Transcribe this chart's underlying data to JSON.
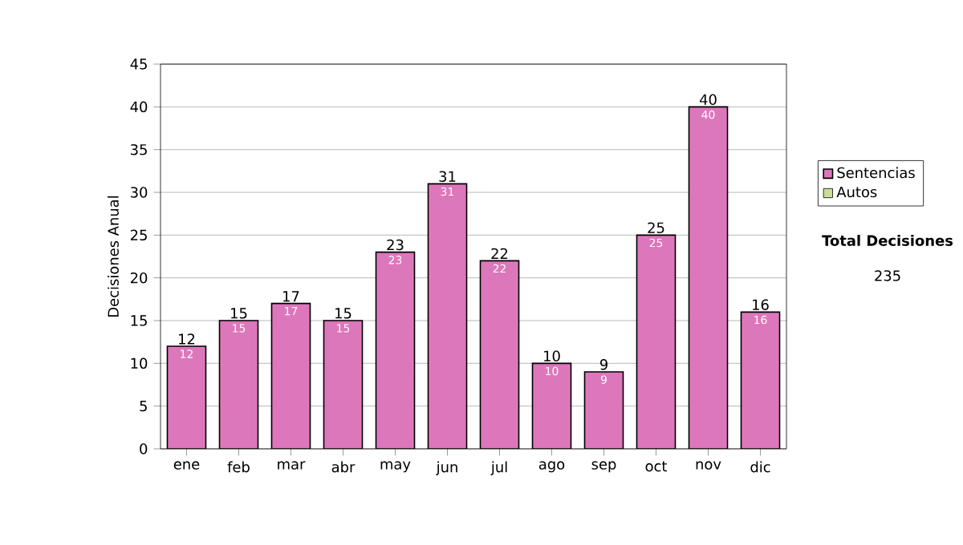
{
  "chart_data": {
    "type": "bar",
    "ylabel": "Decisiones Anual",
    "categories": [
      "ene",
      "feb",
      "mar",
      "abr",
      "may",
      "jun",
      "jul",
      "ago",
      "sep",
      "oct",
      "nov",
      "dic"
    ],
    "series": [
      {
        "name": "Sentencias",
        "color": "#dd77bb",
        "values": [
          12,
          15,
          17,
          15,
          23,
          31,
          22,
          10,
          9,
          25,
          40,
          16
        ],
        "value_labels": [
          "12",
          "15",
          "17",
          "15",
          "23",
          "31",
          "22",
          "10",
          "9",
          "25",
          "40",
          "16"
        ]
      },
      {
        "name": "Autos",
        "color": "#ccdd99",
        "values": [
          null,
          null,
          null,
          null,
          null,
          null,
          null,
          null,
          null,
          null,
          null,
          null
        ]
      }
    ],
    "totals": [
      "12",
      "15",
      "17",
      "15",
      "23",
      "31",
      "22",
      "10",
      "9",
      "25",
      "40",
      "16"
    ],
    "ylim": [
      0,
      45
    ],
    "yticks": [
      0,
      5,
      10,
      15,
      20,
      25,
      30,
      35,
      40,
      45
    ],
    "grid": "y",
    "legend": "right",
    "annotations": [
      "Total Decisiones",
      "235"
    ]
  }
}
